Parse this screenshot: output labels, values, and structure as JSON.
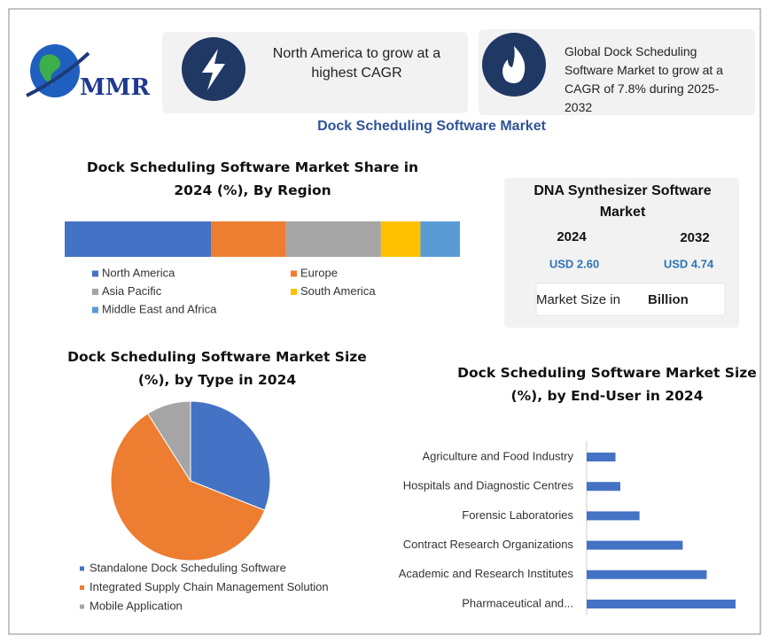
{
  "logo": {
    "text": "MMR"
  },
  "highlights": [
    {
      "text": "North America to grow at a highest CAGR"
    },
    {
      "text": "Global Dock Scheduling Software Market to grow at a CAGR of 7.8% during 2025-2032"
    }
  ],
  "title": "Dock Scheduling Software Market",
  "market_box": {
    "title": "DNA Synthesizer Software Market",
    "years": [
      "2024",
      "2032"
    ],
    "values": [
      "USD 2.60",
      "USD 4.74"
    ],
    "note": "Market Size in",
    "note_unit": "Billion"
  },
  "chart_data": [
    {
      "type": "stacked-bar",
      "title": "Dock Scheduling Software Market Share in 2024 (%), By Region",
      "series": [
        {
          "name": "North America",
          "color": "#4472c4",
          "values": [
            37
          ]
        },
        {
          "name": "Europe",
          "color": "#ed7d31",
          "values": [
            19
          ]
        },
        {
          "name": "Asia Pacific",
          "color": "#a5a5a5",
          "values": [
            24
          ]
        },
        {
          "name": "South America",
          "color": "#ffc000",
          "values": [
            10
          ]
        },
        {
          "name": "Middle East and Africa",
          "color": "#5b9bd5",
          "values": [
            10
          ]
        }
      ]
    },
    {
      "type": "pie",
      "title": "Dock Scheduling Software Market Size (%), by Type in 2024",
      "categories": [
        "Standalone Dock Scheduling Software",
        "Integrated Supply Chain Management Solution",
        "Mobile Application"
      ],
      "values": [
        31,
        60,
        9
      ],
      "colors": [
        "#4472c4",
        "#ed7d31",
        "#a5a5a5"
      ]
    },
    {
      "type": "hbar",
      "title": "Dock Scheduling Software Market Size (%), by End-User in 2024",
      "categories": [
        "Agriculture and Food Industry",
        "Hospitals and Diagnostic Centres",
        "Forensic Laboratories",
        "Contract Research Organizations",
        "Academic and Research Institutes",
        "Pharmaceutical and..."
      ],
      "values": [
        6,
        7,
        11,
        20,
        25,
        31
      ],
      "color": "#4472c4",
      "xlim": [
        0,
        31
      ]
    }
  ]
}
